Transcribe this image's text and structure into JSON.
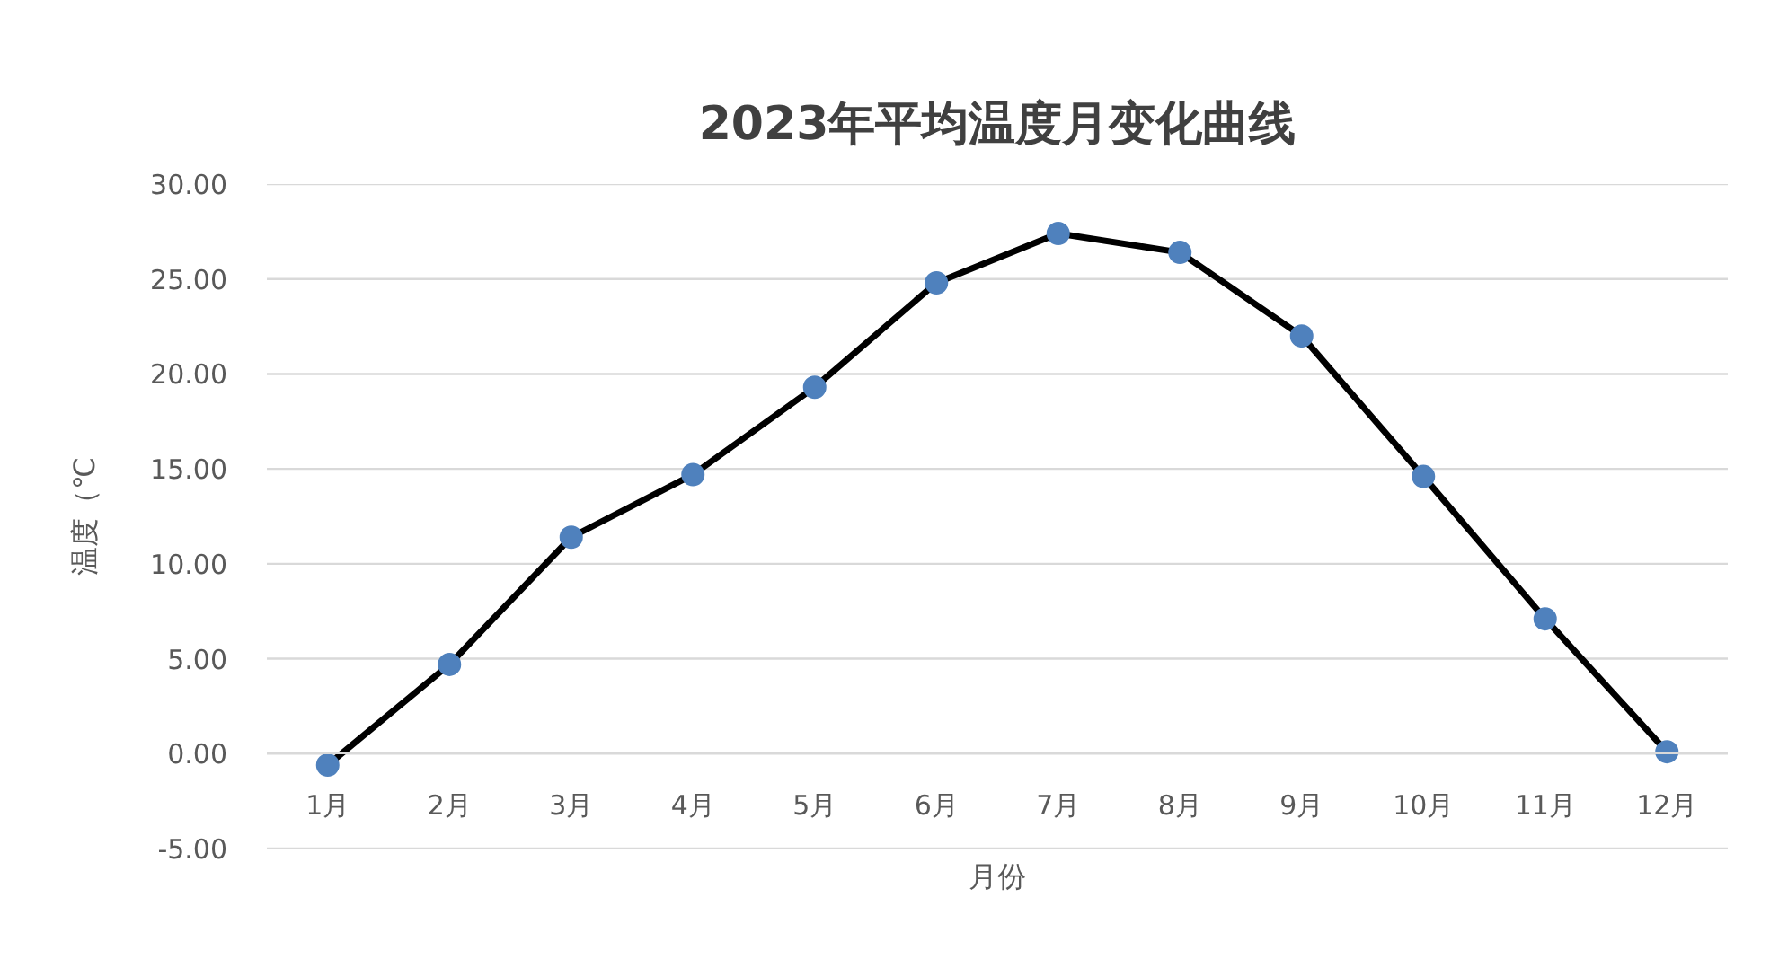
{
  "chart_data": {
    "type": "line",
    "title": "2023年平均温度月变化曲线",
    "xlabel": "月份",
    "ylabel": "温度（℃",
    "categories": [
      "1月",
      "2月",
      "3月",
      "4月",
      "5月",
      "6月",
      "7月",
      "8月",
      "9月",
      "10月",
      "11月",
      "12月"
    ],
    "series": [
      {
        "color": "#000000",
        "colors": [
          "#4f81bd",
          "#4f81bd",
          "#4f81bd",
          "#4f81bd",
          "#4f81bd",
          "#4f81bd",
          "#4f81bd",
          "#4f81bd",
          "#4f81bd",
          "#4f81bd",
          "#4f81bd",
          "#4f81bd"
        ],
        "values": [
          -0.6,
          4.7,
          11.4,
          14.7,
          19.3,
          24.8,
          27.4,
          26.4,
          22.0,
          14.6,
          7.1,
          0.1
        ]
      }
    ],
    "ylim": [
      -5,
      30
    ],
    "yticks": [
      {
        "value": -5,
        "label": "-5.00"
      },
      {
        "value": 0,
        "label": "0.00"
      },
      {
        "value": 5,
        "label": "5.00"
      },
      {
        "value": 10,
        "label": "10.00"
      },
      {
        "value": 15,
        "label": "15.00"
      },
      {
        "value": 20,
        "label": "20.00"
      },
      {
        "value": 25,
        "label": "25.00"
      },
      {
        "value": 30,
        "label": "30.00"
      }
    ],
    "grid": "y",
    "marker": "circle",
    "line_style": "solid"
  }
}
